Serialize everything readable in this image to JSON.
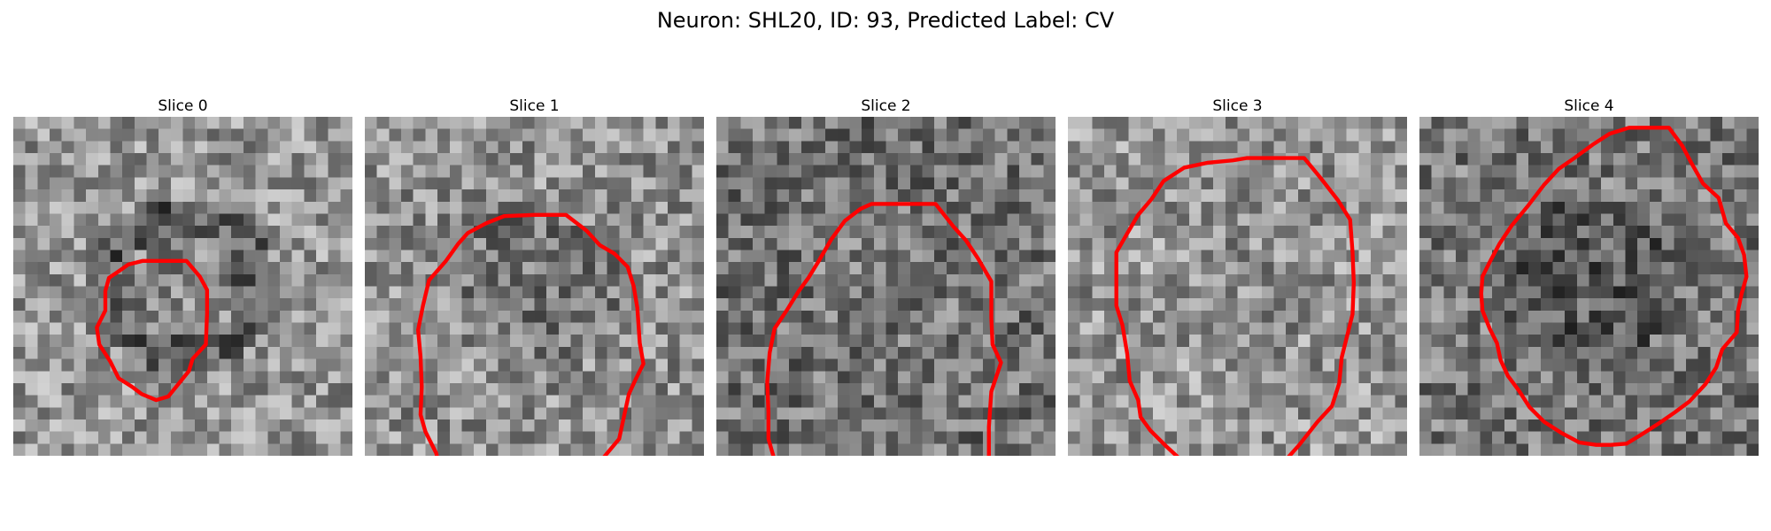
{
  "figure": {
    "suptitle": "Neuron: SHL20, ID: 93, Predicted Label: CV",
    "contour_color": "#ff0000",
    "colormap": "gray"
  },
  "panels": [
    {
      "title": "Slice 0",
      "image_description": "grayscale microscopy crop",
      "contour": [
        [
          12.8,
          11.9
        ],
        [
          14.3,
          11.9
        ],
        [
          15.4,
          13.2
        ],
        [
          16.0,
          14.3
        ],
        [
          16.0,
          16.2
        ],
        [
          15.9,
          18.8
        ],
        [
          14.8,
          20.0
        ],
        [
          14.5,
          21.0
        ],
        [
          12.8,
          23.1
        ],
        [
          11.8,
          23.4
        ],
        [
          10.6,
          22.9
        ],
        [
          9.8,
          22.3
        ],
        [
          8.7,
          21.6
        ],
        [
          8.0,
          20.2
        ],
        [
          7.1,
          18.8
        ],
        [
          6.9,
          17.4
        ],
        [
          7.6,
          16.0
        ],
        [
          7.6,
          14.4
        ],
        [
          7.9,
          13.3
        ],
        [
          8.5,
          12.9
        ],
        [
          9.5,
          12.2
        ],
        [
          10.7,
          11.9
        ]
      ]
    },
    {
      "title": "Slice 1",
      "image_description": "grayscale microscopy crop",
      "contour": [
        [
          14.0,
          8.1
        ],
        [
          16.6,
          8.1
        ],
        [
          18.3,
          9.4
        ],
        [
          19.4,
          10.6
        ],
        [
          20.6,
          11.3
        ],
        [
          21.7,
          12.4
        ],
        [
          22.2,
          14.0
        ],
        [
          22.5,
          15.8
        ],
        [
          22.7,
          18.7
        ],
        [
          23.0,
          20.4
        ],
        [
          22.4,
          21.6
        ],
        [
          21.8,
          22.9
        ],
        [
          21.3,
          25.2
        ],
        [
          21.0,
          26.6
        ],
        [
          19.5,
          28.4
        ],
        [
          18.4,
          29.8
        ],
        [
          17.1,
          30.7
        ],
        [
          16.6,
          31.4
        ],
        [
          14.4,
          32.5
        ],
        [
          13.0,
          32.9
        ],
        [
          11.9,
          32.9
        ],
        [
          10.4,
          32.8
        ],
        [
          8.6,
          32.3
        ],
        [
          7.8,
          31.3
        ],
        [
          6.6,
          30.0
        ],
        [
          6.2,
          29.2
        ],
        [
          5.9,
          27.8
        ],
        [
          5.0,
          26.0
        ],
        [
          4.6,
          24.6
        ],
        [
          4.7,
          22.3
        ],
        [
          4.6,
          19.8
        ],
        [
          4.4,
          17.6
        ],
        [
          4.8,
          15.6
        ],
        [
          5.3,
          13.5
        ],
        [
          6.7,
          11.9
        ],
        [
          7.7,
          10.5
        ],
        [
          8.5,
          9.6
        ],
        [
          10.0,
          8.8
        ],
        [
          11.5,
          8.2
        ]
      ]
    },
    {
      "title": "Slice 2",
      "image_description": "grayscale microscopy crop",
      "contour": [
        [
          12.8,
          7.2
        ],
        [
          15.3,
          7.2
        ],
        [
          18.1,
          7.2
        ],
        [
          19.6,
          9.1
        ],
        [
          20.6,
          10.2
        ],
        [
          21.6,
          11.7
        ],
        [
          22.7,
          13.6
        ],
        [
          22.7,
          16.6
        ],
        [
          22.8,
          18.8
        ],
        [
          23.5,
          20.3
        ],
        [
          23.1,
          21.5
        ],
        [
          22.7,
          22.7
        ],
        [
          22.5,
          25.6
        ],
        [
          22.5,
          28.6
        ],
        [
          21.7,
          30.6
        ],
        [
          20.6,
          31.8
        ],
        [
          19.3,
          33.1
        ],
        [
          17.9,
          34.4
        ],
        [
          16.8,
          35.4
        ],
        [
          15.7,
          35.6
        ],
        [
          14.6,
          35.7
        ],
        [
          13.1,
          35.7
        ],
        [
          11.7,
          35.4
        ],
        [
          10.2,
          35.1
        ],
        [
          8.7,
          34.0
        ],
        [
          7.6,
          32.8
        ],
        [
          6.3,
          31.4
        ],
        [
          5.6,
          30.2
        ],
        [
          4.9,
          28.7
        ],
        [
          4.3,
          26.6
        ],
        [
          4.3,
          24.4
        ],
        [
          4.2,
          21.9
        ],
        [
          4.4,
          19.5
        ],
        [
          4.8,
          17.5
        ],
        [
          5.8,
          16.0
        ],
        [
          6.8,
          14.4
        ],
        [
          7.6,
          13.3
        ],
        [
          8.4,
          12.0
        ],
        [
          9.5,
          10.1
        ],
        [
          10.6,
          8.6
        ],
        [
          11.9,
          7.6
        ]
      ]
    },
    {
      "title": "Slice 3",
      "image_description": "grayscale microscopy crop",
      "contour": [
        [
          14.8,
          3.4
        ],
        [
          17.1,
          3.4
        ],
        [
          19.5,
          3.4
        ],
        [
          20.9,
          5.1
        ],
        [
          22.3,
          6.9
        ],
        [
          23.3,
          8.5
        ],
        [
          23.5,
          11.2
        ],
        [
          23.6,
          13.7
        ],
        [
          23.5,
          16.3
        ],
        [
          23.1,
          17.9
        ],
        [
          22.6,
          19.9
        ],
        [
          22.4,
          22.0
        ],
        [
          21.8,
          23.9
        ],
        [
          20.6,
          25.2
        ],
        [
          19.1,
          27.1
        ],
        [
          18.3,
          28.0
        ],
        [
          17.2,
          29.1
        ],
        [
          15.7,
          29.5
        ],
        [
          14.1,
          29.5
        ],
        [
          12.1,
          29.5
        ],
        [
          10.5,
          29.5
        ],
        [
          9.5,
          28.5
        ],
        [
          8.1,
          27.2
        ],
        [
          6.8,
          25.9
        ],
        [
          6.0,
          24.8
        ],
        [
          5.8,
          23.4
        ],
        [
          5.1,
          21.8
        ],
        [
          4.9,
          19.6
        ],
        [
          4.5,
          17.2
        ],
        [
          4.0,
          15.6
        ],
        [
          4.0,
          13.3
        ],
        [
          4.0,
          11.2
        ],
        [
          4.8,
          9.8
        ],
        [
          5.8,
          8.1
        ],
        [
          6.9,
          6.8
        ],
        [
          7.9,
          5.3
        ],
        [
          9.6,
          4.2
        ],
        [
          11.5,
          3.8
        ],
        [
          13.6,
          3.6
        ]
      ]
    },
    {
      "title": "Slice 4",
      "image_description": "grayscale microscopy crop",
      "contour": [
        [
          17.3,
          0.9
        ],
        [
          18.9,
          0.9
        ],
        [
          20.6,
          0.9
        ],
        [
          21.7,
          2.4
        ],
        [
          22.5,
          3.9
        ],
        [
          23.4,
          5.5
        ],
        [
          24.7,
          6.7
        ],
        [
          25.3,
          8.8
        ],
        [
          26.3,
          10.0
        ],
        [
          26.8,
          11.4
        ],
        [
          27.0,
          13.2
        ],
        [
          26.6,
          14.6
        ],
        [
          26.3,
          16.0
        ],
        [
          26.2,
          17.8
        ],
        [
          25.0,
          19.2
        ],
        [
          24.5,
          20.7
        ],
        [
          23.6,
          22.1
        ],
        [
          22.3,
          23.5
        ],
        [
          21.1,
          24.4
        ],
        [
          19.8,
          25.3
        ],
        [
          18.4,
          26.2
        ],
        [
          17.1,
          27.0
        ],
        [
          15.8,
          27.1
        ],
        [
          14.6,
          27.1
        ],
        [
          13.2,
          26.9
        ],
        [
          11.7,
          26.1
        ],
        [
          10.3,
          25.2
        ],
        [
          9.1,
          24.0
        ],
        [
          8.2,
          22.6
        ],
        [
          7.3,
          21.4
        ],
        [
          6.7,
          20.1
        ],
        [
          6.4,
          18.7
        ],
        [
          5.8,
          17.5
        ],
        [
          5.2,
          16.0
        ],
        [
          5.1,
          14.6
        ],
        [
          5.2,
          13.2
        ],
        [
          5.8,
          12.0
        ],
        [
          6.6,
          10.5
        ],
        [
          7.6,
          9.0
        ],
        [
          9.0,
          7.3
        ],
        [
          10.3,
          5.6
        ],
        [
          11.5,
          4.3
        ],
        [
          12.8,
          3.4
        ],
        [
          14.3,
          2.3
        ],
        [
          15.7,
          1.4
        ]
      ]
    }
  ]
}
